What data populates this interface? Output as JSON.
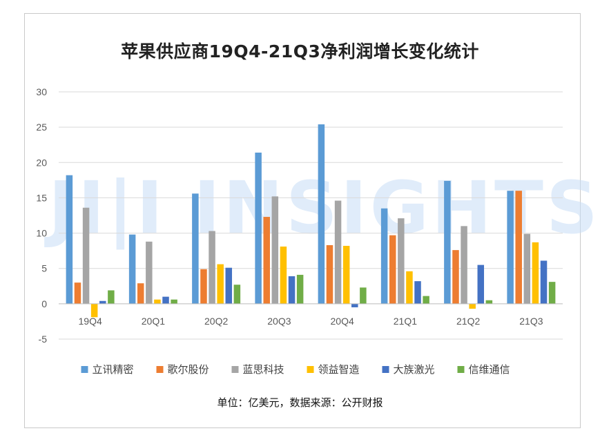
{
  "chart_data": {
    "type": "bar",
    "title": "苹果供应商19Q4-21Q3净利润增长变化统计",
    "categories": [
      "19Q4",
      "20Q1",
      "20Q2",
      "20Q3",
      "20Q4",
      "21Q1",
      "21Q2",
      "21Q3"
    ],
    "ylim": [
      -5,
      30
    ],
    "yticks": [
      -5,
      0,
      5,
      10,
      15,
      20,
      25,
      30
    ],
    "grid": true,
    "legend_position": "bottom",
    "series": [
      {
        "name": "立讯精密",
        "color": "#5b9bd5",
        "values": [
          18.2,
          9.8,
          15.6,
          21.4,
          25.4,
          13.5,
          17.4,
          16.0
        ]
      },
      {
        "name": "歌尔股份",
        "color": "#ed7d31",
        "values": [
          3.0,
          2.9,
          4.9,
          12.3,
          8.3,
          9.7,
          7.6,
          16.0
        ]
      },
      {
        "name": "蓝思科技",
        "color": "#a5a5a5",
        "values": [
          13.6,
          8.8,
          10.3,
          15.2,
          14.6,
          12.1,
          11.0,
          9.9
        ]
      },
      {
        "name": "领益智造",
        "color": "#ffc000",
        "values": [
          -1.9,
          0.6,
          5.6,
          8.1,
          8.2,
          4.6,
          -0.7,
          8.7
        ]
      },
      {
        "name": "大族激光",
        "color": "#4472c4",
        "values": [
          0.4,
          1.0,
          5.1,
          3.9,
          -0.5,
          3.2,
          5.5,
          6.1
        ]
      },
      {
        "name": "信维通信",
        "color": "#70ad47",
        "values": [
          1.9,
          0.6,
          2.7,
          4.1,
          2.3,
          1.1,
          0.5,
          3.1
        ]
      }
    ]
  },
  "watermark": "JI|I INSIGHTS",
  "note": "单位：亿美元，数据来源：公开财报"
}
